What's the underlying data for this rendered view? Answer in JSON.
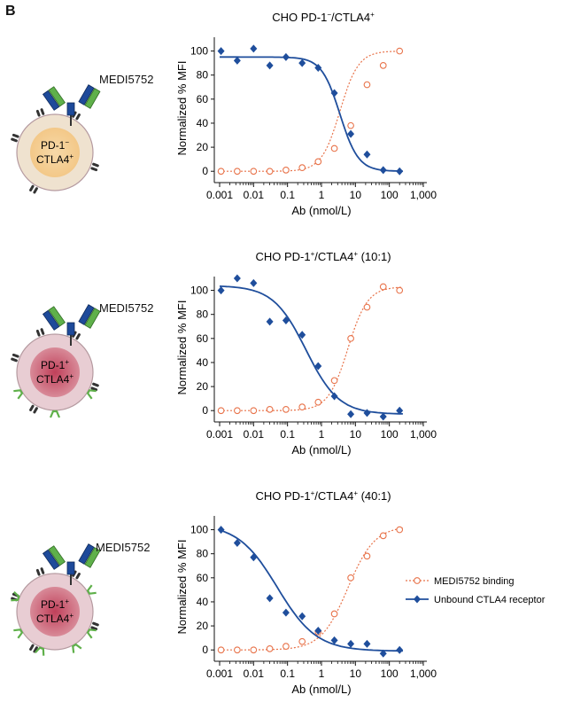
{
  "panel_label": "B",
  "drug_label": "MEDI5752",
  "colors": {
    "binding": "#e8734a",
    "unbound": "#1f4e9c",
    "antibody_dark": "#1e4a9a",
    "antibody_light": "#5fb04a"
  },
  "legend": {
    "binding": "MEDI5752 binding",
    "unbound": "Unbound CTLA4 receptor"
  },
  "panels": [
    {
      "title_pre": "CHO PD-1",
      "title_sup1": "−",
      "title_mid": "/CTLA4",
      "title_sup2": "+",
      "title_post": "",
      "cell_text1": "PD-1",
      "cell_sup1": "−",
      "cell_text2": "CTLA4",
      "cell_sup2": "+"
    },
    {
      "title_pre": "CHO PD-1",
      "title_sup1": "+",
      "title_mid": "/CTLA4",
      "title_sup2": "+",
      "title_post": " (10:1)",
      "cell_text1": "PD-1",
      "cell_sup1": "+",
      "cell_text2": "CTLA4",
      "cell_sup2": "+"
    },
    {
      "title_pre": "CHO PD-1",
      "title_sup1": "+",
      "title_mid": "/CTLA4",
      "title_sup2": "+",
      "title_post": " (40:1)",
      "cell_text1": "PD-1",
      "cell_sup1": "+",
      "cell_text2": "CTLA4",
      "cell_sup2": "+"
    }
  ],
  "chart_data": [
    {
      "type": "scatter",
      "title": "CHO PD-1−/CTLA4+",
      "xlabel": "Ab (nmol/L)",
      "ylabel": "Normalized % MFI",
      "xscale": "log",
      "xlim": [
        0.001,
        1000
      ],
      "ylim": [
        -5,
        110
      ],
      "xticks": [
        "0.001",
        "0.01",
        "0.1",
        "1",
        "10",
        "100",
        "1,000"
      ],
      "yticks": [
        0,
        20,
        40,
        60,
        80,
        100
      ],
      "series": [
        {
          "name": "MEDI5752 binding",
          "marker": "open-circle",
          "line": "dotted",
          "x": [
            0.0011,
            0.0033,
            0.01,
            0.03,
            0.09,
            0.27,
            0.8,
            2.4,
            7.3,
            22,
            66,
            200
          ],
          "y": [
            0,
            0,
            0,
            0,
            1,
            3,
            8,
            19,
            38,
            72,
            88,
            100
          ]
        },
        {
          "name": "Unbound CTLA4 receptor",
          "marker": "filled-diamond",
          "line": "solid",
          "x": [
            0.0011,
            0.0033,
            0.01,
            0.03,
            0.09,
            0.27,
            0.8,
            2.4,
            7.3,
            22,
            66,
            200
          ],
          "y": [
            100,
            92,
            102,
            88,
            95,
            90,
            86,
            65,
            31,
            14,
            1,
            0
          ]
        }
      ]
    },
    {
      "type": "scatter",
      "title": "CHO PD-1+/CTLA4+ (10:1)",
      "xlabel": "Ab (nmol/L)",
      "ylabel": "Normalized % MFI",
      "xscale": "log",
      "xlim": [
        0.001,
        1000
      ],
      "ylim": [
        -5,
        110
      ],
      "xticks": [
        "0.001",
        "0.01",
        "0.1",
        "1",
        "10",
        "100",
        "1,000"
      ],
      "yticks": [
        0,
        20,
        40,
        60,
        80,
        100
      ],
      "series": [
        {
          "name": "MEDI5752 binding",
          "marker": "open-circle",
          "line": "dotted",
          "x": [
            0.0011,
            0.0033,
            0.01,
            0.03,
            0.09,
            0.27,
            0.8,
            2.4,
            7.3,
            22,
            66,
            200
          ],
          "y": [
            0,
            0,
            0,
            1,
            1,
            3,
            7,
            25,
            60,
            86,
            103,
            100
          ]
        },
        {
          "name": "Unbound CTLA4 receptor",
          "marker": "filled-diamond",
          "line": "solid",
          "x": [
            0.0011,
            0.0033,
            0.01,
            0.03,
            0.09,
            0.27,
            0.8,
            2.4,
            7.3,
            22,
            66,
            200
          ],
          "y": [
            100,
            110,
            106,
            74,
            75,
            63,
            37,
            12,
            -3,
            -2,
            -5,
            0
          ]
        }
      ]
    },
    {
      "type": "scatter",
      "title": "CHO PD-1+/CTLA4+ (40:1)",
      "xlabel": "Ab (nmol/L)",
      "ylabel": "Normalized % MFI",
      "xscale": "log",
      "xlim": [
        0.001,
        1000
      ],
      "ylim": [
        -5,
        110
      ],
      "xticks": [
        "0.001",
        "0.01",
        "0.1",
        "1",
        "10",
        "100",
        "1,000"
      ],
      "yticks": [
        0,
        20,
        40,
        60,
        80,
        100
      ],
      "legend": "right",
      "series": [
        {
          "name": "MEDI5752 binding",
          "marker": "open-circle",
          "line": "dotted",
          "x": [
            0.0011,
            0.0033,
            0.01,
            0.03,
            0.09,
            0.27,
            0.8,
            2.4,
            7.3,
            22,
            66,
            200
          ],
          "y": [
            0,
            0,
            0,
            1,
            3,
            7,
            15,
            30,
            60,
            78,
            95,
            100
          ]
        },
        {
          "name": "Unbound CTLA4 receptor",
          "marker": "filled-diamond",
          "line": "solid",
          "x": [
            0.0011,
            0.0033,
            0.01,
            0.03,
            0.09,
            0.27,
            0.8,
            2.4,
            7.3,
            22,
            66,
            200
          ],
          "y": [
            100,
            89,
            77,
            43,
            31,
            28,
            16,
            8,
            5,
            5,
            -3,
            0
          ]
        }
      ]
    }
  ]
}
